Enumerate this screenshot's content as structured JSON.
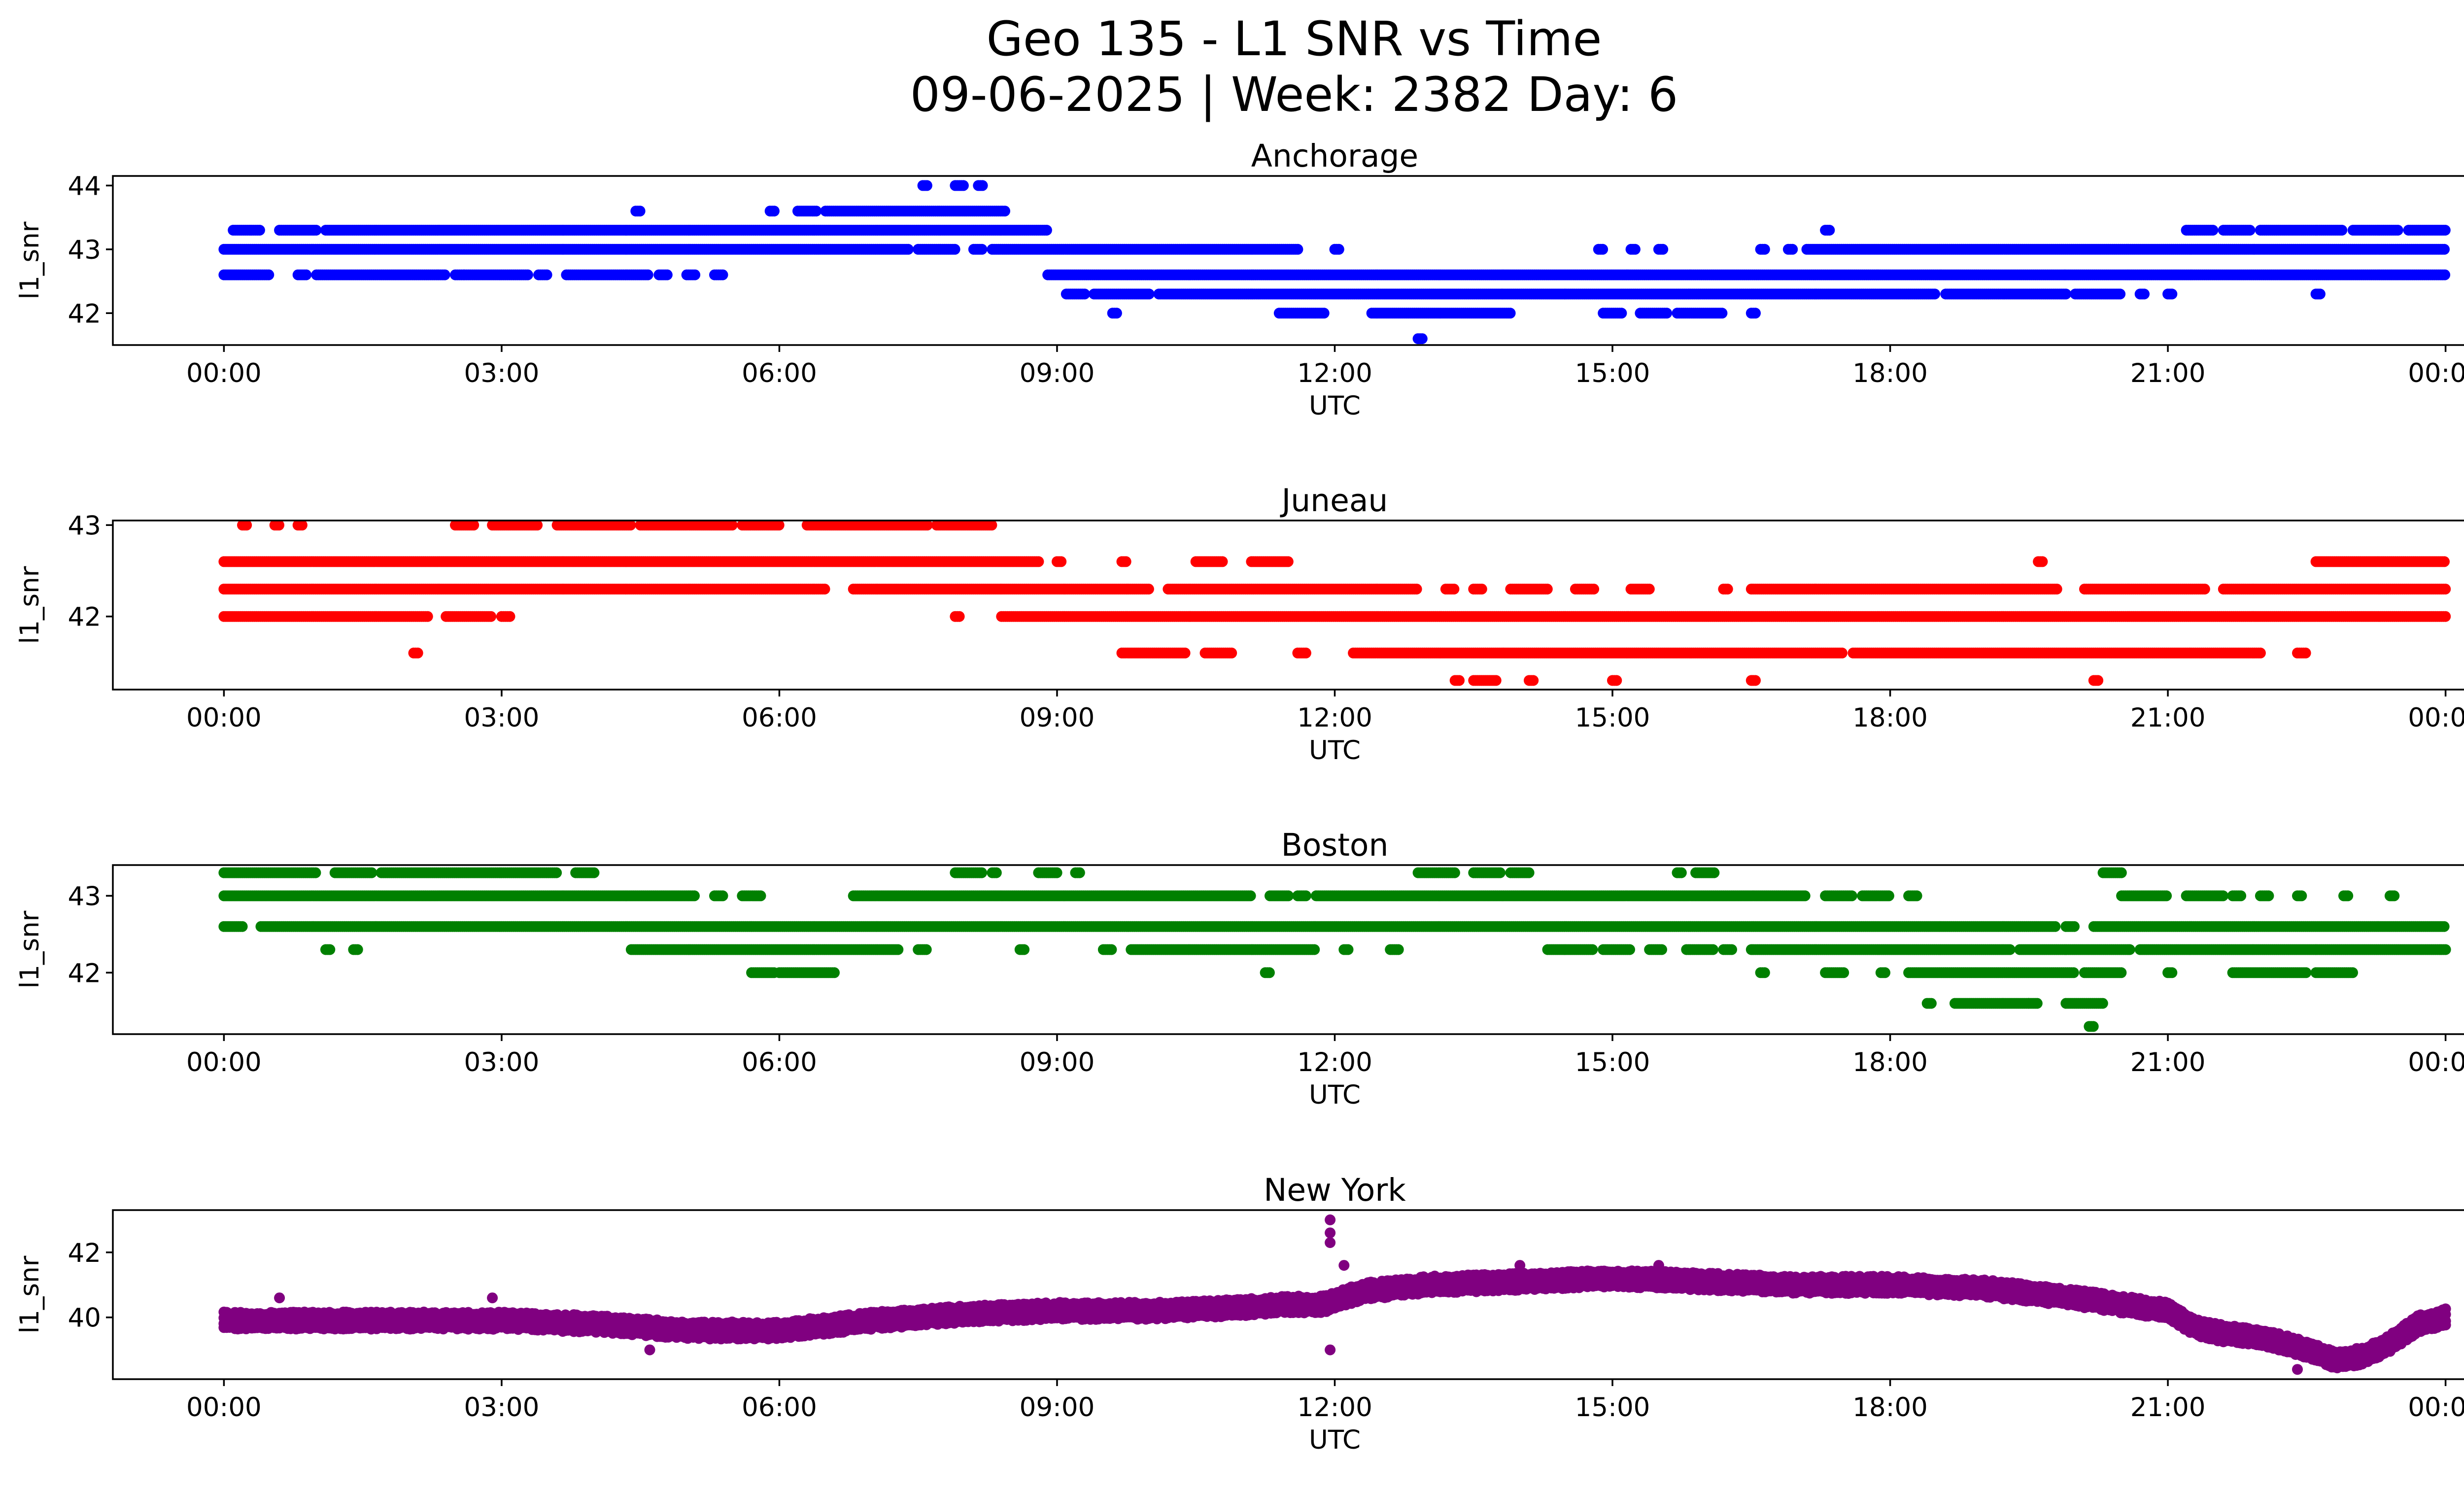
{
  "chart_data": {
    "type": "scatter",
    "title_line1": "Geo 135 - L1 SNR vs Time",
    "title_line2": "09-06-2025 | Week: 2382 Day: 6",
    "xlabel": "UTC",
    "ylabel": "l1_snr",
    "x_ticks": [
      "00:00",
      "03:00",
      "06:00",
      "09:00",
      "12:00",
      "15:00",
      "18:00",
      "21:00",
      "00:00"
    ],
    "xlim_hours": [
      -1.2,
      25.2
    ],
    "panels": [
      {
        "title": "Anchorage",
        "color": "#0000ff",
        "ylim": [
          41.5,
          44.15
        ],
        "y_ticks": [
          42,
          43,
          44
        ],
        "bands": [
          {
            "y": 42.6,
            "ranges": [
              [
                0,
                0.5
              ],
              [
                0.8,
                0.9
              ],
              [
                1,
                2.4
              ],
              [
                2.5,
                2.6
              ],
              [
                2.6,
                3.3
              ],
              [
                3.4,
                3.5
              ],
              [
                3.7,
                4.6
              ],
              [
                4.7,
                4.8
              ],
              [
                5,
                5.1
              ],
              [
                5.3,
                5.4
              ],
              [
                8.9,
                24
              ]
            ]
          },
          {
            "y": 43.0,
            "ranges": [
              [
                0,
                7.4
              ],
              [
                7.5,
                7.9
              ],
              [
                8.1,
                8.2
              ],
              [
                8.3,
                11.6
              ],
              [
                12,
                12.05
              ],
              [
                14.85,
                14.9
              ],
              [
                15.2,
                15.25
              ],
              [
                15.5,
                15.55
              ],
              [
                16.6,
                16.65
              ],
              [
                16.9,
                16.95
              ],
              [
                17.1,
                24
              ]
            ]
          },
          {
            "y": 43.3,
            "ranges": [
              [
                0.1,
                0.4
              ],
              [
                0.6,
                1.0
              ],
              [
                1.1,
                8.9
              ],
              [
                17.3,
                17.35
              ],
              [
                21.2,
                21.5
              ],
              [
                21.6,
                21.9
              ],
              [
                22.0,
                22.9
              ],
              [
                23.0,
                23.5
              ],
              [
                23.6,
                24
              ]
            ]
          },
          {
            "y": 43.6,
            "ranges": [
              [
                4.45,
                4.5
              ],
              [
                5.9,
                5.95
              ],
              [
                6.2,
                6.4
              ],
              [
                6.5,
                8.45
              ]
            ]
          },
          {
            "y": 42.3,
            "ranges": [
              [
                9.1,
                9.3
              ],
              [
                9.4,
                10.0
              ],
              [
                10.1,
                18.5
              ],
              [
                18.6,
                19.9
              ],
              [
                20.0,
                20.5
              ],
              [
                20.7,
                20.75
              ],
              [
                21.0,
                21.05
              ],
              [
                22.6,
                22.65
              ]
            ]
          },
          {
            "y": 42.0,
            "ranges": [
              [
                9.6,
                9.65
              ],
              [
                11.4,
                11.9
              ],
              [
                12.4,
                13.9
              ],
              [
                14.9,
                15.1
              ],
              [
                15.3,
                15.6
              ],
              [
                15.7,
                16.2
              ],
              [
                16.5,
                16.55
              ]
            ]
          },
          {
            "y": 44.0,
            "ranges": [
              [
                7.55,
                7.6
              ],
              [
                7.9,
                8.0
              ],
              [
                8.15,
                8.2
              ]
            ]
          },
          {
            "y": 41.6,
            "ranges": [
              [
                12.9,
                12.95
              ]
            ]
          }
        ]
      },
      {
        "title": "Juneau",
        "color": "#ff0000",
        "ylim": [
          41.2,
          43.05
        ],
        "y_ticks": [
          42,
          43
        ],
        "bands": [
          {
            "y": 42.0,
            "ranges": [
              [
                0,
                2.2
              ],
              [
                2.4,
                2.9
              ],
              [
                3.0,
                3.1
              ],
              [
                7.9,
                7.95
              ],
              [
                8.4,
                24
              ]
            ]
          },
          {
            "y": 42.3,
            "ranges": [
              [
                0,
                6.5
              ],
              [
                6.8,
                10.0
              ],
              [
                10.2,
                12.9
              ],
              [
                13.2,
                13.3
              ],
              [
                13.5,
                13.6
              ],
              [
                13.9,
                14.3
              ],
              [
                14.6,
                14.8
              ],
              [
                15.2,
                15.4
              ],
              [
                16.2,
                16.25
              ],
              [
                16.5,
                19.8
              ],
              [
                20.1,
                21.4
              ],
              [
                21.6,
                24
              ]
            ]
          },
          {
            "y": 42.6,
            "ranges": [
              [
                0,
                8.8
              ],
              [
                9.0,
                9.05
              ],
              [
                9.7,
                9.75
              ],
              [
                10.5,
                10.8
              ],
              [
                11.1,
                11.5
              ],
              [
                19.6,
                19.65
              ],
              [
                22.6,
                24
              ]
            ]
          },
          {
            "y": 43.0,
            "ranges": [
              [
                0.2,
                0.25
              ],
              [
                0.55,
                0.6
              ],
              [
                0.8,
                0.85
              ],
              [
                2.5,
                2.7
              ],
              [
                2.9,
                3.4
              ],
              [
                3.6,
                4.4
              ],
              [
                4.5,
                5.5
              ],
              [
                5.6,
                6.0
              ],
              [
                6.3,
                7.6
              ],
              [
                7.7,
                8.3
              ]
            ]
          },
          {
            "y": 41.6,
            "ranges": [
              [
                2.05,
                2.1
              ],
              [
                9.7,
                10.4
              ],
              [
                10.6,
                10.9
              ],
              [
                11.6,
                11.7
              ],
              [
                12.2,
                17.5
              ],
              [
                17.6,
                22.0
              ],
              [
                22.4,
                22.5
              ]
            ]
          },
          {
            "y": 41.3,
            "ranges": [
              [
                13.3,
                13.35
              ],
              [
                13.5,
                13.75
              ],
              [
                14.1,
                14.15
              ],
              [
                15.0,
                15.05
              ],
              [
                16.5,
                16.55
              ],
              [
                20.2,
                20.25
              ]
            ]
          }
        ]
      },
      {
        "title": "Boston",
        "color": "#008000",
        "ylim": [
          41.2,
          43.4
        ],
        "y_ticks": [
          42,
          43
        ],
        "bands": [
          {
            "y": 42.6,
            "ranges": [
              [
                0,
                0.2
              ],
              [
                0.4,
                19.8
              ],
              [
                19.9,
                20.0
              ],
              [
                20.2,
                24
              ]
            ]
          },
          {
            "y": 43.0,
            "ranges": [
              [
                0,
                5.1
              ],
              [
                5.3,
                5.4
              ],
              [
                5.6,
                5.8
              ],
              [
                6.8,
                11.1
              ],
              [
                11.3,
                11.5
              ],
              [
                11.6,
                11.7
              ],
              [
                11.8,
                17.1
              ],
              [
                17.3,
                17.6
              ],
              [
                17.7,
                18.0
              ],
              [
                18.2,
                18.3
              ],
              [
                20.5,
                21.0
              ],
              [
                21.2,
                21.6
              ],
              [
                21.7,
                21.8
              ],
              [
                22.0,
                22.1
              ],
              [
                22.4,
                22.45
              ],
              [
                22.9,
                22.95
              ],
              [
                23.4,
                23.45
              ]
            ]
          },
          {
            "y": 43.3,
            "ranges": [
              [
                0,
                1.0
              ],
              [
                1.2,
                1.6
              ],
              [
                1.7,
                3.6
              ],
              [
                3.8,
                4.0
              ],
              [
                7.9,
                8.2
              ],
              [
                8.3,
                8.35
              ],
              [
                8.8,
                9.0
              ],
              [
                9.2,
                9.25
              ],
              [
                12.9,
                13.3
              ],
              [
                13.5,
                13.8
              ],
              [
                13.9,
                14.1
              ],
              [
                15.7,
                15.75
              ],
              [
                15.9,
                16.1
              ],
              [
                20.3,
                20.5
              ]
            ]
          },
          {
            "y": 42.3,
            "ranges": [
              [
                1.1,
                1.15
              ],
              [
                1.4,
                1.45
              ],
              [
                4.4,
                7.3
              ],
              [
                7.5,
                7.6
              ],
              [
                8.6,
                8.65
              ],
              [
                9.5,
                9.6
              ],
              [
                9.8,
                11.8
              ],
              [
                12.1,
                12.15
              ],
              [
                12.6,
                12.7
              ],
              [
                14.3,
                14.8
              ],
              [
                14.9,
                15.2
              ],
              [
                15.4,
                15.55
              ],
              [
                15.8,
                16.1
              ],
              [
                16.2,
                16.3
              ],
              [
                16.5,
                19.3
              ],
              [
                19.4,
                20.6
              ],
              [
                20.7,
                24
              ]
            ]
          },
          {
            "y": 42.0,
            "ranges": [
              [
                5.7,
                5.95
              ],
              [
                6.0,
                6.6
              ],
              [
                11.25,
                11.3
              ],
              [
                16.6,
                16.65
              ],
              [
                17.3,
                17.5
              ],
              [
                17.9,
                17.95
              ],
              [
                18.2,
                20.0
              ],
              [
                20.1,
                20.5
              ],
              [
                21.0,
                21.05
              ],
              [
                21.7,
                22.5
              ],
              [
                22.6,
                23.0
              ]
            ]
          },
          {
            "y": 41.6,
            "ranges": [
              [
                18.4,
                18.45
              ],
              [
                18.7,
                19.5
              ],
              [
                19.5,
                19.6
              ],
              [
                19.9,
                20.3
              ]
            ]
          },
          {
            "y": 41.3,
            "ranges": [
              [
                20.15,
                20.2
              ]
            ]
          }
        ]
      },
      {
        "title": "New York",
        "color": "#800080",
        "ylim": [
          38.1,
          43.3
        ],
        "y_ticks": [
          40,
          42
        ],
        "x_samples": [
          0,
          1,
          2,
          3,
          4,
          5,
          6,
          7,
          8,
          9,
          10,
          11,
          11.5,
          11.9,
          12.3,
          13,
          14,
          15,
          16,
          17,
          18,
          19,
          20,
          20.5,
          21,
          21.3,
          21.6,
          22,
          22.5,
          22.8,
          23.1,
          23.4,
          23.7,
          24
        ],
        "y_samples": [
          39.9,
          39.9,
          39.9,
          39.9,
          39.8,
          39.6,
          39.6,
          39.9,
          40.1,
          40.2,
          40.2,
          40.3,
          40.4,
          40.4,
          40.8,
          41.0,
          41.1,
          41.2,
          41.1,
          41.0,
          41.0,
          40.9,
          40.6,
          40.4,
          40.2,
          39.7,
          39.5,
          39.4,
          39.0,
          38.7,
          38.8,
          39.2,
          39.8,
          40.0
        ],
        "spread": 0.45,
        "outliers": [
          [
            11.95,
            43.0
          ],
          [
            11.95,
            42.6
          ],
          [
            11.95,
            42.3
          ],
          [
            11.95,
            39.0
          ],
          [
            12.1,
            41.6
          ],
          [
            14.0,
            41.6
          ],
          [
            15.5,
            41.6
          ],
          [
            4.6,
            39.0
          ],
          [
            0.6,
            40.6
          ],
          [
            2.9,
            40.6
          ],
          [
            22.4,
            38.4
          ]
        ]
      }
    ]
  }
}
